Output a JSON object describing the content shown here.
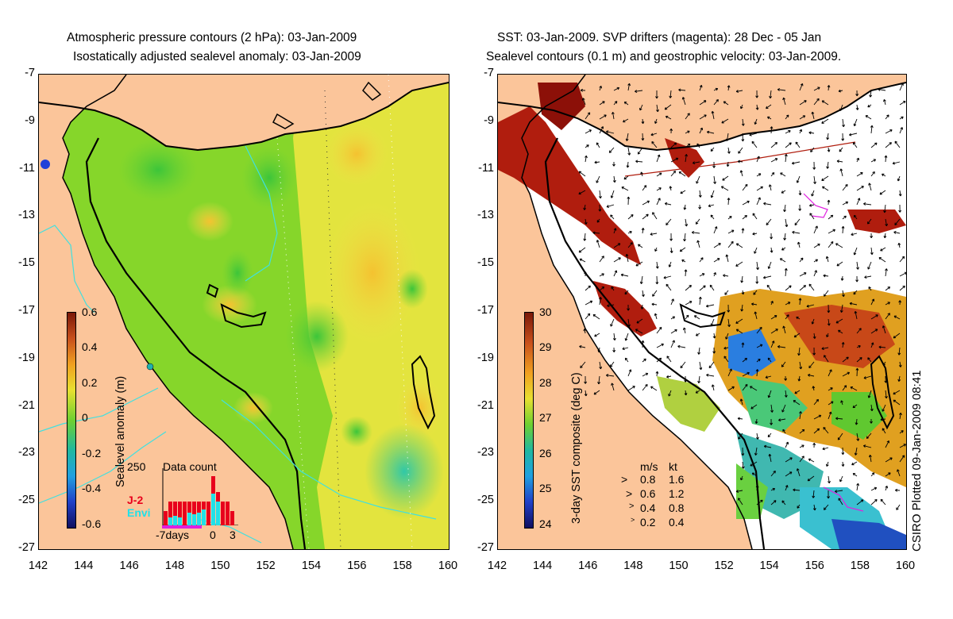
{
  "left_panel": {
    "title_line1": "Atmospheric pressure contours (2 hPa): 03-Jan-2009",
    "title_line2": "Isostatically adjusted sealevel anomaly: 03-Jan-2009",
    "colorbar_label": "Sealevel anomaly (m)",
    "colorbar_ticks": [
      "0.6",
      "0.4",
      "0.2",
      "0",
      "-0.2",
      "-0.4",
      "-0.6"
    ],
    "inset": {
      "title": "Data count",
      "y_top_label": "250",
      "x_labels": [
        "-7days",
        "0",
        "3"
      ],
      "legend_j2": "J-2",
      "legend_envi": "Envi",
      "legend_j2_color": "#e8001c",
      "legend_envi_color": "#21e0e8"
    }
  },
  "right_panel": {
    "title_line1": "SST: 03-Jan-2009. SVP drifters (magenta): 28 Dec - 05 Jan",
    "title_line2": "Sealevel contours (0.1 m) and geostrophic velocity: 03-Jan-2009.",
    "colorbar_label": "3-day SST composite (deg C)",
    "colorbar_ticks": [
      "30",
      "29",
      "28",
      "27",
      "26",
      "25",
      "24"
    ],
    "speed_legend": {
      "header_ms": "m/s",
      "header_kt": "kt",
      "rows": [
        {
          "ms": "0.8",
          "kt": "1.6"
        },
        {
          "ms": "0.6",
          "kt": "1.2"
        },
        {
          "ms": "0.4",
          "kt": "0.8"
        },
        {
          "ms": "0.2",
          "kt": "0.4"
        }
      ]
    }
  },
  "y_axis_labels": [
    "-7",
    "-9",
    "-11",
    "-13",
    "-15",
    "-17",
    "-19",
    "-21",
    "-23",
    "-25",
    "-27"
  ],
  "x_axis_labels": [
    "142",
    "144",
    "146",
    "148",
    "150",
    "152",
    "154",
    "156",
    "158",
    "160"
  ],
  "credit": "CSIRO Plotted 09-Jan-2009 08:41",
  "colors": {
    "land": "#fbc59a",
    "ocean_green": "#7ed321",
    "ocean_yellow": "#f2e84a",
    "sst_dark_red": "#b01d0e",
    "contour_cyan": "#40e0e0",
    "drifter_magenta": "#e020e0"
  }
}
